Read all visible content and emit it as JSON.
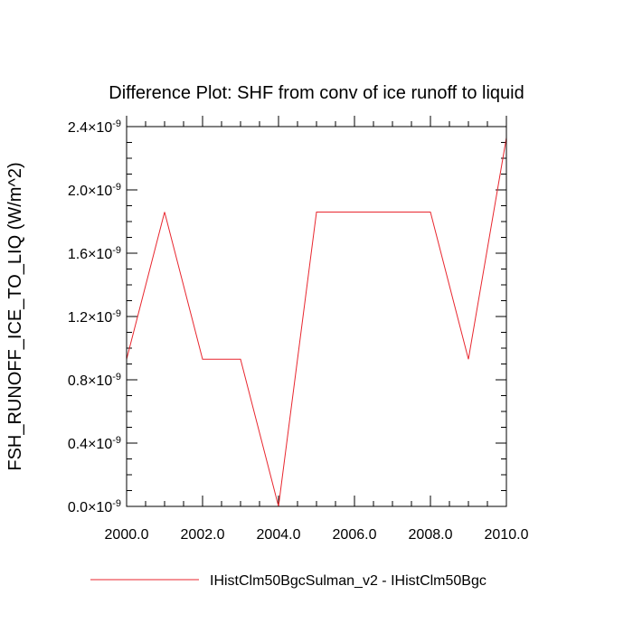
{
  "chart_data": {
    "type": "line",
    "title": "Difference Plot: SHF from conv of ice runoff to liquid",
    "xlabel": "",
    "ylabel": "FSH_RUNOFF_ICE_TO_LIQ  (W/m^2)",
    "xlim": [
      2000.0,
      2010.0
    ],
    "ylim": [
      0.0,
      2.4
    ],
    "y_multiplier_exponent": "-9",
    "x_ticks": [
      {
        "value": 2000,
        "label": "2000.0"
      },
      {
        "value": 2002,
        "label": "2002.0"
      },
      {
        "value": 2004,
        "label": "2004.0"
      },
      {
        "value": 2006,
        "label": "2006.0"
      },
      {
        "value": 2008,
        "label": "2008.0"
      },
      {
        "value": 2010,
        "label": "2010.0"
      }
    ],
    "y_ticks": [
      {
        "value": 0.0,
        "mantissa": "0.0"
      },
      {
        "value": 0.4,
        "mantissa": "0.4"
      },
      {
        "value": 0.8,
        "mantissa": "0.8"
      },
      {
        "value": 1.2,
        "mantissa": "1.2"
      },
      {
        "value": 1.6,
        "mantissa": "1.6"
      },
      {
        "value": 2.0,
        "mantissa": "2.0"
      },
      {
        "value": 2.4,
        "mantissa": "2.4"
      }
    ],
    "grid": false,
    "legend_position": "bottom",
    "series": [
      {
        "name": "IHistClm50BgcSulman_v2 - IHistClm50Bgc",
        "color": "#e8262e",
        "x": [
          2000,
          2001,
          2002,
          2003,
          2004,
          2005,
          2006,
          2007,
          2008,
          2009,
          2010
        ],
        "values": [
          0.93,
          1.86,
          0.93,
          0.93,
          0.0,
          1.86,
          1.86,
          1.86,
          1.86,
          0.93,
          2.33
        ]
      }
    ]
  }
}
